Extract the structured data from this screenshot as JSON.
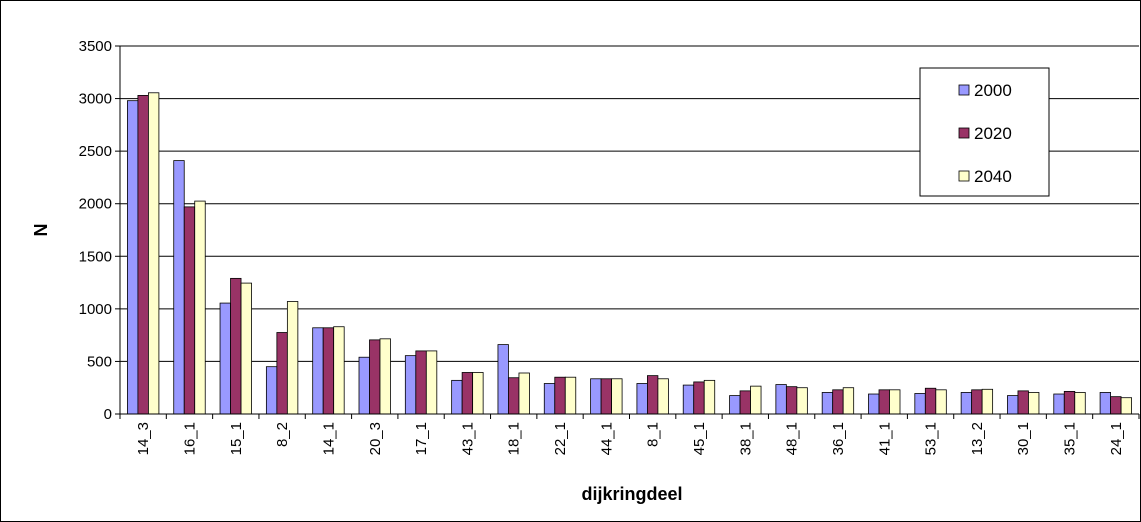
{
  "chart_data": {
    "type": "bar",
    "title": "",
    "xlabel": "dijkringdeel",
    "ylabel": "N",
    "ylim": [
      0,
      3500
    ],
    "yticks": [
      0,
      500,
      1000,
      1500,
      2000,
      2500,
      3000,
      3500
    ],
    "grid": true,
    "legend_position": "top-right",
    "categories": [
      "14_3",
      "16_1",
      "15_1",
      "8_2",
      "14_1",
      "20_3",
      "17_1",
      "43_1",
      "18_1",
      "22_1",
      "44_1",
      "8_1",
      "45_1",
      "38_1",
      "48_1",
      "36_1",
      "41_1",
      "53_1",
      "13_2",
      "30_1",
      "35_1",
      "24_1"
    ],
    "series": [
      {
        "name": "2000",
        "color": "#9999ff",
        "values": [
          2980,
          2410,
          1055,
          450,
          820,
          540,
          555,
          320,
          660,
          290,
          335,
          290,
          275,
          175,
          280,
          205,
          190,
          195,
          205,
          175,
          190,
          205
        ]
      },
      {
        "name": "2020",
        "color": "#993366",
        "values": [
          3030,
          1970,
          1290,
          775,
          820,
          705,
          600,
          395,
          345,
          350,
          335,
          365,
          305,
          220,
          260,
          230,
          230,
          245,
          230,
          220,
          215,
          165
        ]
      },
      {
        "name": "2040",
        "color": "#ffffcc",
        "values": [
          3055,
          2025,
          1245,
          1070,
          830,
          715,
          600,
          395,
          390,
          350,
          335,
          335,
          320,
          265,
          250,
          250,
          230,
          230,
          235,
          205,
          205,
          155
        ]
      }
    ]
  }
}
